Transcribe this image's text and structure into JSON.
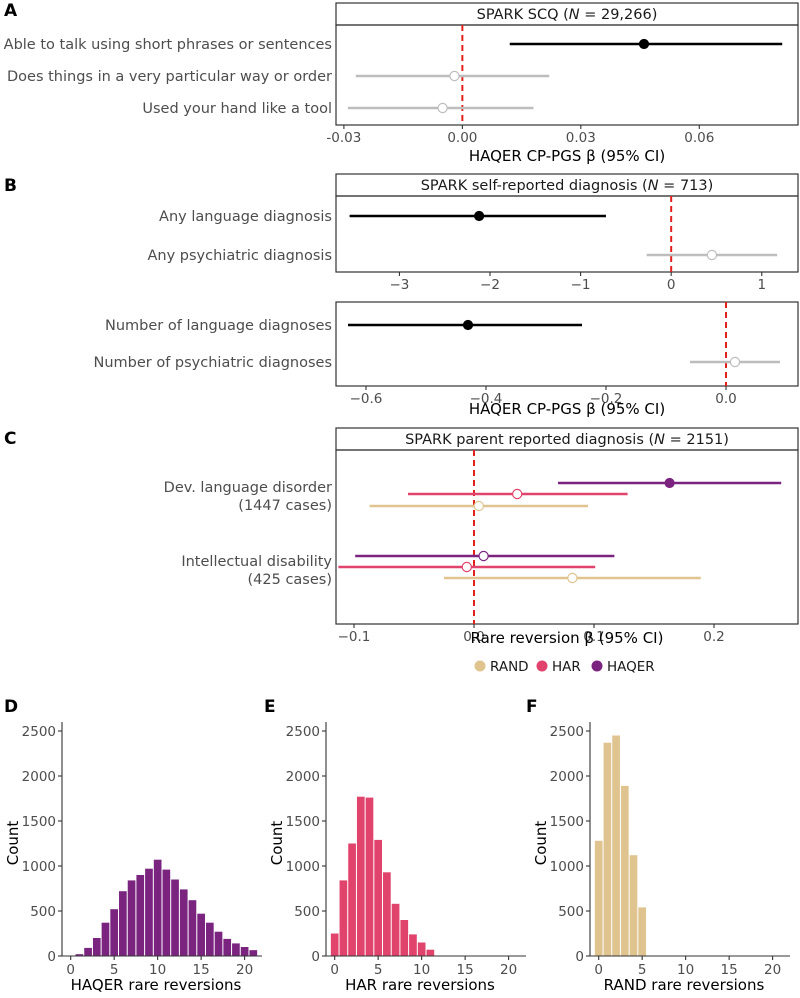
{
  "colors": {
    "significant": "#000000",
    "nonsignificant": "#bdbdbd",
    "zero_line": "#e3211c",
    "RAND": "#dfc48f",
    "HAR": "#e0436b",
    "HAQER": "#7a2480"
  },
  "chart_data": [
    {
      "panel": "A",
      "type": "forest",
      "title": "SPARK SCQ (N = 29,266)",
      "title_parts": [
        "SPARK SCQ (",
        "N",
        " = 29,266)"
      ],
      "xlabel": "HAQER CP-PGS β (95% CI)",
      "xlim": [
        -0.032,
        0.085
      ],
      "xticks": [
        -0.03,
        0.0,
        0.03,
        0.06
      ],
      "xtick_labels": [
        "-0.03",
        "0.00",
        "0.03",
        "0.06"
      ],
      "rows": [
        {
          "label": "Able to talk using short phrases or sentences",
          "estimate": 0.046,
          "lower": 0.012,
          "upper": 0.081,
          "significant": true
        },
        {
          "label": "Does things in a very particular way or order",
          "estimate": -0.002,
          "lower": -0.027,
          "upper": 0.022,
          "significant": false
        },
        {
          "label": "Used your hand like a tool",
          "estimate": -0.005,
          "lower": -0.029,
          "upper": 0.018,
          "significant": false
        }
      ]
    },
    {
      "panel": "B",
      "type": "forest",
      "title": "SPARK self-reported diagnosis (N = 713)",
      "title_parts": [
        "SPARK self-reported diagnosis (",
        "N",
        " = 713)"
      ],
      "xlabel": "HAQER CP-PGS β (95% CI)",
      "subpanels": [
        {
          "xlim": [
            -3.7,
            1.4
          ],
          "xticks": [
            -3,
            -2,
            -1,
            0,
            1
          ],
          "xtick_labels": [
            "−3",
            "−2",
            "−1",
            "0",
            "1"
          ],
          "rows": [
            {
              "label": "Any language diagnosis",
              "estimate": -2.12,
              "lower": -3.55,
              "upper": -0.72,
              "significant": true
            },
            {
              "label": "Any psychiatric diagnosis",
              "estimate": 0.45,
              "lower": -0.27,
              "upper": 1.17,
              "significant": false
            }
          ]
        },
        {
          "xlim": [
            -0.65,
            0.12
          ],
          "xticks": [
            -0.6,
            -0.4,
            -0.2,
            0.0
          ],
          "xtick_labels": [
            "−0.6",
            "−0.4",
            "−0.2",
            "0.0"
          ],
          "rows": [
            {
              "label": "Number of language diagnoses",
              "estimate": -0.43,
              "lower": -0.63,
              "upper": -0.24,
              "significant": true
            },
            {
              "label": "Number of psychiatric diagnoses",
              "estimate": 0.015,
              "lower": -0.06,
              "upper": 0.09,
              "significant": false
            }
          ]
        }
      ]
    },
    {
      "panel": "C",
      "type": "forest",
      "title": "SPARK parent reported diagnosis (N = 2151)",
      "title_parts": [
        "SPARK parent reported diagnosis (",
        "N",
        " = 2151)"
      ],
      "xlabel": "Rare reversion β (95% CI)",
      "xlim": [
        -0.115,
        0.27
      ],
      "xticks": [
        -0.1,
        0.0,
        0.1,
        0.2
      ],
      "xtick_labels": [
        "−0.1",
        "0.0",
        "0.1",
        "0.2"
      ],
      "groups": [
        {
          "label_lines": [
            "Dev. language disorder",
            "(1447 cases)"
          ],
          "rows": [
            {
              "series": "HAQER",
              "estimate": 0.163,
              "lower": 0.07,
              "upper": 0.256,
              "significant": true
            },
            {
              "series": "HAR",
              "estimate": 0.036,
              "lower": -0.055,
              "upper": 0.128,
              "significant": false
            },
            {
              "series": "RAND",
              "estimate": 0.004,
              "lower": -0.087,
              "upper": 0.095,
              "significant": false
            }
          ]
        },
        {
          "label_lines": [
            "Intellectual disability",
            "(425 cases)"
          ],
          "rows": [
            {
              "series": "HAQER",
              "estimate": 0.008,
              "lower": -0.099,
              "upper": 0.117,
              "significant": false
            },
            {
              "series": "HAR",
              "estimate": -0.006,
              "lower": -0.113,
              "upper": 0.101,
              "significant": false
            },
            {
              "series": "RAND",
              "estimate": 0.082,
              "lower": -0.025,
              "upper": 0.189,
              "significant": false
            }
          ]
        }
      ],
      "legend": [
        "RAND",
        "HAR",
        "HAQER"
      ],
      "legend_position": "bottom"
    },
    {
      "panel": "D",
      "type": "bar",
      "xlabel": "HAQER rare reversions",
      "ylabel": "Count",
      "series": "HAQER",
      "xlim": [
        -1,
        22
      ],
      "ylim": [
        0,
        2600
      ],
      "xticks": [
        0,
        5,
        10,
        15,
        20
      ],
      "yticks": [
        0,
        500,
        1000,
        1500,
        2000,
        2500
      ],
      "x": [
        0,
        1,
        2,
        3,
        4,
        5,
        6,
        7,
        8,
        9,
        10,
        11,
        12,
        13,
        14,
        15,
        16,
        17,
        18,
        19,
        20,
        21
      ],
      "values": [
        2,
        20,
        90,
        200,
        370,
        520,
        720,
        840,
        900,
        970,
        1070,
        960,
        850,
        740,
        620,
        470,
        370,
        270,
        190,
        140,
        100,
        65
      ]
    },
    {
      "panel": "E",
      "type": "bar",
      "xlabel": "HAR rare reversions",
      "ylabel": "Count",
      "series": "HAR",
      "xlim": [
        -1,
        22
      ],
      "ylim": [
        0,
        2600
      ],
      "xticks": [
        0,
        5,
        10,
        15,
        20
      ],
      "yticks": [
        0,
        500,
        1000,
        1500,
        2000,
        2500
      ],
      "x": [
        0,
        1,
        2,
        3,
        4,
        5,
        6,
        7,
        8,
        9,
        10,
        11
      ],
      "values": [
        250,
        840,
        1250,
        1770,
        1760,
        1290,
        930,
        580,
        400,
        240,
        150,
        70
      ]
    },
    {
      "panel": "F",
      "type": "bar",
      "xlabel": "RAND rare reversions",
      "ylabel": "Count",
      "series": "RAND",
      "xlim": [
        -1,
        22
      ],
      "ylim": [
        0,
        2600
      ],
      "xticks": [
        0,
        5,
        10,
        15,
        20
      ],
      "yticks": [
        0,
        500,
        1000,
        1500,
        2000,
        2500
      ],
      "x": [
        0,
        1,
        2,
        3,
        4,
        5
      ],
      "values": [
        1280,
        2370,
        2450,
        1890,
        1120,
        540
      ]
    }
  ]
}
